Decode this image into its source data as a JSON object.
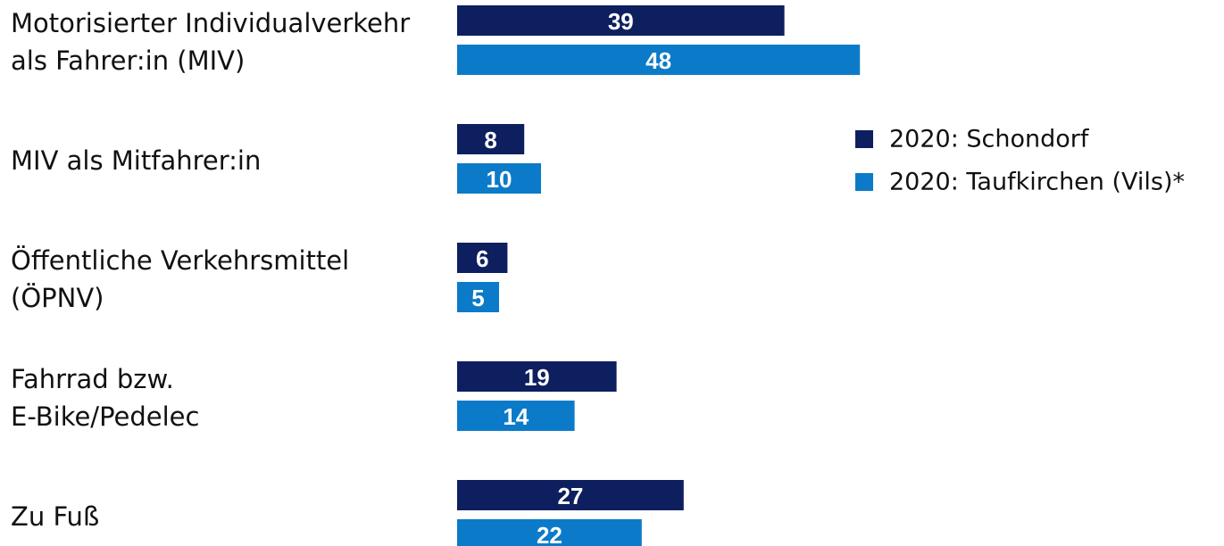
{
  "chart_data": {
    "type": "bar",
    "orientation": "horizontal",
    "categories": [
      "Motorisierter Individualverkehr\nals Fahrer:in (MIV)",
      "MIV als Mitfahrer:in",
      "Öffentliche Verkehrsmittel\n(ÖPNV)",
      "Fahrrad bzw.\nE-Bike/Pedelec",
      "Zu Fuß"
    ],
    "series": [
      {
        "name": "2020: Schondorf",
        "color": "#0d1f5f",
        "values": [
          39,
          8,
          6,
          19,
          27
        ]
      },
      {
        "name": "2020: Taufkirchen (Vils)*",
        "color": "#0b7bc9",
        "values": [
          48,
          10,
          5,
          14,
          22
        ]
      }
    ],
    "legend": "right"
  }
}
